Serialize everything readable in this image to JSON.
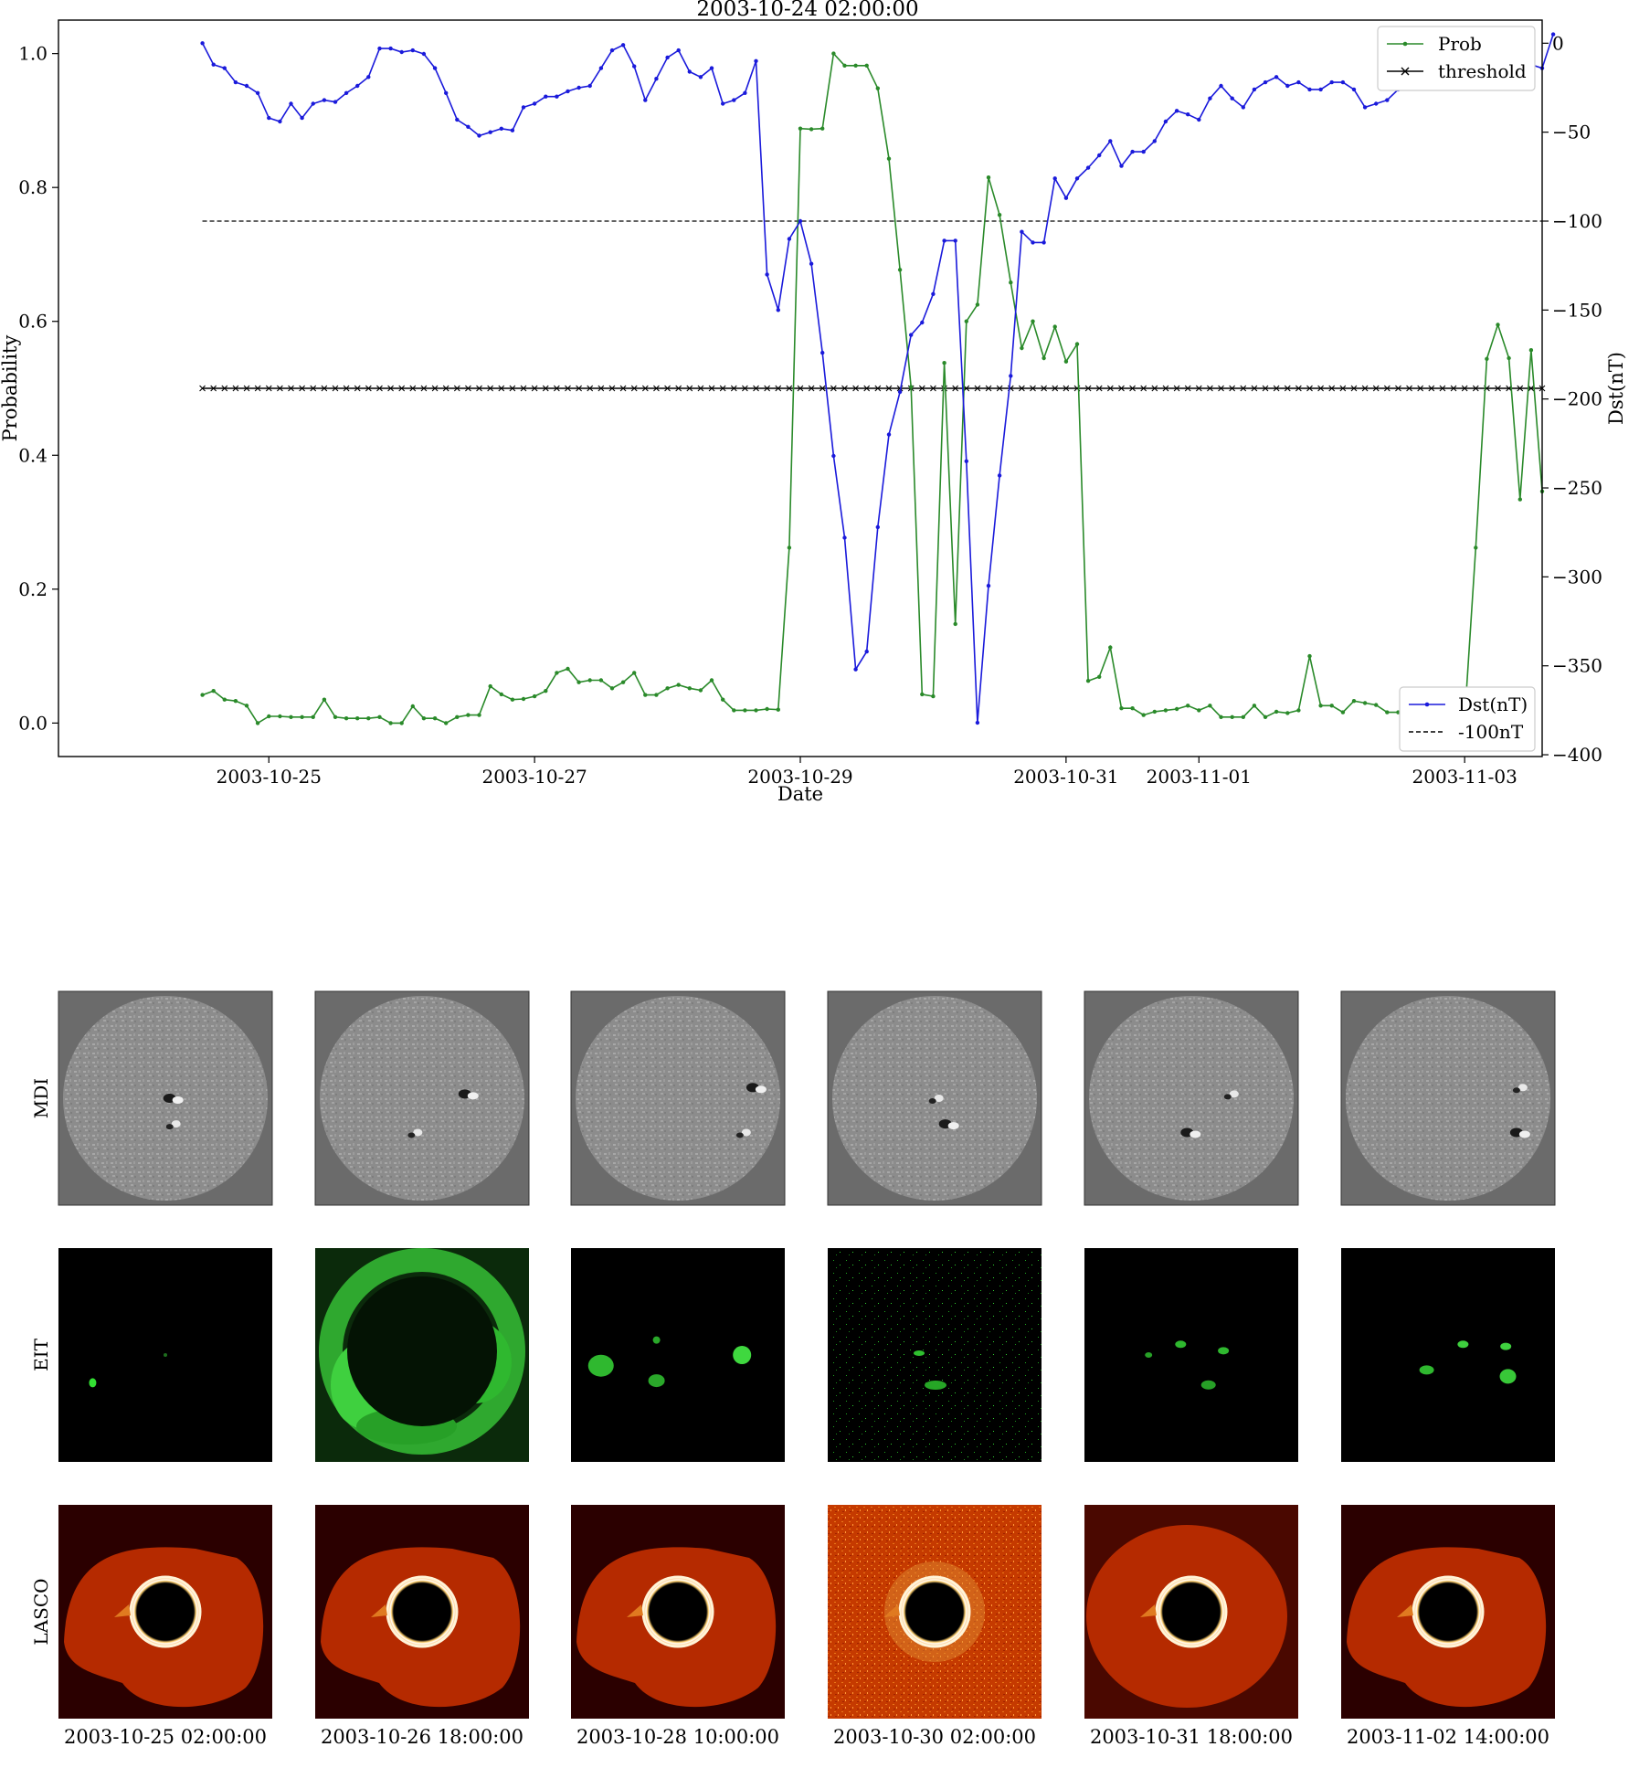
{
  "chart_data": {
    "type": "line",
    "title": "2003-10-24 02:00:00",
    "xlabel": "Date",
    "ylabel_left": "Probability",
    "ylabel_right": "Dst(nT)",
    "x_ticks": [
      "2003-10-25",
      "2003-10-27",
      "2003-10-29",
      "2003-10-31",
      "2003-11-01",
      "2003-11-03"
    ],
    "x_tick_hours": [
      24,
      72,
      120,
      168,
      192,
      240
    ],
    "x_range_hours": [
      -14,
      254
    ],
    "y_left_ticks": [
      "0.0",
      "0.2",
      "0.4",
      "0.6",
      "0.8",
      "1.0"
    ],
    "y_left_range": [
      -0.05,
      1.05
    ],
    "y_right_ticks": [
      "0",
      "−50",
      "−100",
      "−150",
      "−200",
      "−250",
      "−300",
      "−350",
      "−400"
    ],
    "y_right_range": [
      -401,
      13
    ],
    "threshold": 0.5,
    "dst_reference": -100,
    "x_start_hours": 12,
    "x_step_hours": 2,
    "colors": {
      "prob": "#2a8a2a",
      "dst": "#1a1adb",
      "threshold": "#000000",
      "ref": "#000000"
    },
    "legend_upper": [
      {
        "label": "Prob",
        "color": "#2a8a2a",
        "marker": "dot"
      },
      {
        "label": "threshold",
        "color": "#000000",
        "marker": "x"
      }
    ],
    "legend_lower": [
      {
        "label": "Dst(nT)",
        "color": "#1a1adb",
        "marker": "dot"
      },
      {
        "label": "-100nT",
        "color": "#000000",
        "marker": "dash"
      }
    ],
    "series": [
      {
        "name": "Prob",
        "axis": "left",
        "values": [
          0.042,
          0.048,
          0.035,
          0.033,
          0.026,
          0.0,
          0.01,
          0.01,
          0.009,
          0.009,
          0.009,
          0.035,
          0.009,
          0.007,
          0.007,
          0.007,
          0.009,
          0.0,
          0.0,
          0.025,
          0.007,
          0.007,
          0.0,
          0.009,
          0.012,
          0.012,
          0.055,
          0.043,
          0.035,
          0.036,
          0.04,
          0.048,
          0.075,
          0.081,
          0.061,
          0.064,
          0.064,
          0.052,
          0.061,
          0.075,
          0.042,
          0.042,
          0.052,
          0.057,
          0.052,
          0.049,
          0.064,
          0.035,
          0.019,
          0.019,
          0.019,
          0.021,
          0.02,
          0.262,
          0.888,
          0.887,
          0.888,
          1.0,
          0.982,
          0.982,
          0.982,
          0.948,
          0.843,
          0.677,
          0.502,
          0.043,
          0.04,
          0.538,
          0.148,
          0.6,
          0.625,
          0.815,
          0.759,
          0.658,
          0.56,
          0.6,
          0.545,
          0.592,
          0.54,
          0.566,
          0.063,
          0.069,
          0.113,
          0.022,
          0.022,
          0.012,
          0.017,
          0.019,
          0.021,
          0.026,
          0.019,
          0.026,
          0.009,
          0.009,
          0.009,
          0.026,
          0.009,
          0.017,
          0.015,
          0.019,
          0.1,
          0.026,
          0.026,
          0.016,
          0.033,
          0.03,
          0.027,
          0.016,
          0.016,
          0.016,
          0.016,
          0.027,
          0.022,
          0.016,
          0.007,
          0.262,
          0.544,
          0.595,
          0.545,
          0.334,
          0.557,
          0.346
        ]
      },
      {
        "name": "Dst(nT)",
        "axis": "right",
        "values": [
          0,
          -12,
          -14,
          -22,
          -24,
          -28,
          -42,
          -44,
          -34,
          -42,
          -34,
          -32,
          -33,
          -28,
          -24,
          -19,
          -3,
          -3,
          -5,
          -4,
          -6,
          -14,
          -28,
          -43,
          -47,
          -52,
          -50,
          -48,
          -49,
          -36,
          -34,
          -30,
          -30,
          -27,
          -25,
          -24,
          -14,
          -4,
          -1,
          -13,
          -32,
          -20,
          -8,
          -4,
          -16,
          -19,
          -14,
          -34,
          -32,
          -28,
          -10,
          -130,
          -150,
          -110,
          -100,
          -124,
          -174,
          -232,
          -278,
          -352,
          -342,
          -272,
          -220,
          -196,
          -164,
          -157,
          -141,
          -111,
          -111,
          -235,
          -382,
          -305,
          -243,
          -187,
          -106,
          -112,
          -112,
          -76,
          -87,
          -76,
          -70,
          -63,
          -55,
          -69,
          -61,
          -61,
          -55,
          -44,
          -38,
          -40,
          -43,
          -31,
          -24,
          -31,
          -36,
          -26,
          -22,
          -19,
          -24,
          -22,
          -26,
          -26,
          -22,
          -22,
          -26,
          -36,
          -34,
          -32,
          -26,
          -23,
          -20,
          -16,
          -6,
          -6,
          -5,
          -2,
          -2,
          -4,
          -5,
          -19,
          -12,
          -14,
          5
        ]
      }
    ]
  },
  "panels": {
    "rows": [
      "MDI",
      "EIT",
      "LASCO"
    ],
    "dates": [
      "2003-10-25 02:00:00",
      "2003-10-26 18:00:00",
      "2003-10-28 10:00:00",
      "2003-10-30 02:00:00",
      "2003-10-31 18:00:00",
      "2003-11-02 14:00:00"
    ]
  }
}
